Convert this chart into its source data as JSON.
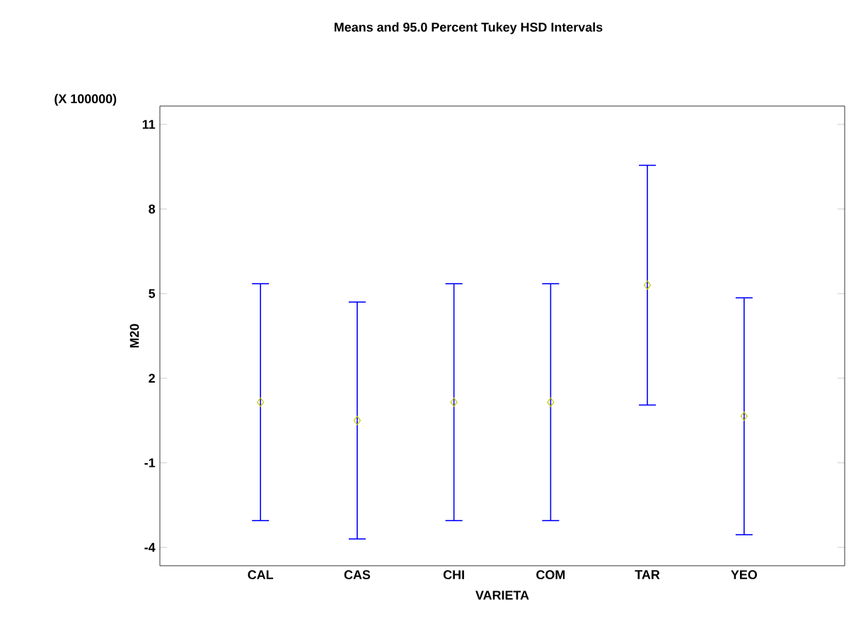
{
  "chart_data": {
    "type": "scatter",
    "title": "Means and 95.0 Percent Tukey HSD Intervals",
    "xlabel": "VARIETA",
    "ylabel": "M20",
    "annotations": [
      "(X 100000)"
    ],
    "categories": [
      "CAL",
      "CAS",
      "CHI",
      "COM",
      "TAR",
      "YEO"
    ],
    "series": [
      {
        "color": "#c8c800",
        "values": [
          1.15,
          0.5,
          1.15,
          1.15,
          5.3,
          0.65
        ],
        "errors": [
          4.2,
          4.2,
          4.2,
          4.2,
          4.25,
          4.2
        ]
      }
    ],
    "ylim": [
      -4.65,
      11.65
    ],
    "yticks": [
      -4,
      -1,
      2,
      5,
      8,
      11
    ],
    "marker": "diamond",
    "grid": false
  }
}
